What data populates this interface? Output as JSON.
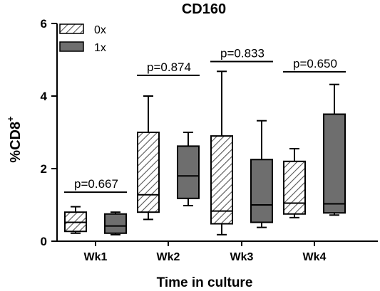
{
  "chart_data": {
    "type": "box",
    "title": "CD160",
    "xlabel": "Time in culture",
    "ylabel_main": "%CD8",
    "ylabel_sup": "+",
    "ylim": [
      0,
      6
    ],
    "yticks": [
      "0",
      "2",
      "4",
      "6"
    ],
    "categories": [
      "Wk1",
      "Wk2",
      "Wk3",
      "Wk4"
    ],
    "legend": {
      "placement": "top-left",
      "items": [
        {
          "label": "0x",
          "style": "hatched"
        },
        {
          "label": "1x",
          "style": "filled"
        }
      ]
    },
    "pvalues": [
      "p=0.667",
      "p=0.874",
      "p=0.833",
      "p=0.650"
    ],
    "series": [
      {
        "name": "0x",
        "boxes": [
          {
            "min": 0.22,
            "q1": 0.27,
            "median": 0.52,
            "q3": 0.8,
            "max": 0.95
          },
          {
            "min": 0.6,
            "q1": 0.8,
            "median": 1.28,
            "q3": 3.0,
            "max": 4.0
          },
          {
            "min": 0.18,
            "q1": 0.48,
            "median": 0.83,
            "q3": 2.9,
            "max": 4.68
          },
          {
            "min": 0.65,
            "q1": 0.75,
            "median": 1.05,
            "q3": 2.2,
            "max": 2.55
          }
        ]
      },
      {
        "name": "1x",
        "boxes": [
          {
            "min": 0.18,
            "q1": 0.22,
            "median": 0.42,
            "q3": 0.75,
            "max": 0.8
          },
          {
            "min": 0.98,
            "q1": 1.18,
            "median": 1.8,
            "q3": 2.62,
            "max": 3.0
          },
          {
            "min": 0.38,
            "q1": 0.52,
            "median": 1.0,
            "q3": 2.25,
            "max": 3.32
          },
          {
            "min": 0.72,
            "q1": 0.78,
            "median": 1.03,
            "q3": 3.5,
            "max": 4.32
          }
        ]
      }
    ],
    "colors": {
      "filled_box": "#6e6e6e",
      "hatch_line": "#555555",
      "axis": "#000000",
      "text": "#000000"
    }
  }
}
